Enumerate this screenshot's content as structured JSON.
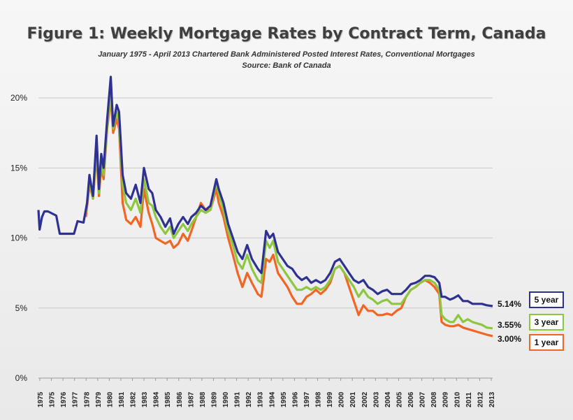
{
  "chart_data": {
    "type": "line",
    "title": "Figure 1: Weekly Mortgage Rates by Contract Term, Canada",
    "subtitle": "January 1975 - April 2013 Chartered Bank Administered Posted Interest Rates, Conventional Mortgages",
    "source": "Source: Bank of Canada",
    "xlabel": "",
    "ylabel": "",
    "xlim": [
      1975,
      2013.3
    ],
    "ylim": [
      0,
      22
    ],
    "y_ticks": [
      0,
      5,
      10,
      15,
      20
    ],
    "y_tick_labels": [
      "0%",
      "5%",
      "10%",
      "15%",
      "20%"
    ],
    "x_tick_labels": [
      "1975",
      "1975",
      "1976",
      "1977",
      "1978",
      "1979",
      "1980",
      "1981",
      "1982",
      "1983",
      "1984",
      "1985",
      "1986",
      "1987",
      "1988",
      "1989",
      "1990",
      "1991",
      "1992",
      "1993",
      "1994",
      "1995",
      "1996",
      "1997",
      "1998",
      "1999",
      "2000",
      "2001",
      "2002",
      "2003",
      "2004",
      "2005",
      "2006",
      "2007",
      "2008",
      "2009",
      "2010",
      "2011",
      "2012",
      "2013"
    ],
    "grid": true,
    "legend_position": "right",
    "colors": {
      "five_year": "#2e3192",
      "three_year": "#8dc63f",
      "one_year": "#f26522"
    },
    "series": [
      {
        "name": "5 year",
        "end_label": "5.14%",
        "x": [
          1975.0,
          1975.1,
          1975.3,
          1975.5,
          1975.8,
          1976.5,
          1976.8,
          1977.3,
          1978.0,
          1978.3,
          1978.8,
          1979.1,
          1979.3,
          1979.6,
          1979.9,
          1980.1,
          1980.3,
          1980.5,
          1980.8,
          1981.1,
          1981.3,
          1981.6,
          1981.8,
          1982.1,
          1982.4,
          1982.8,
          1983.2,
          1983.6,
          1983.9,
          1984.3,
          1984.6,
          1984.9,
          1985.3,
          1985.7,
          1986.1,
          1986.4,
          1986.8,
          1987.2,
          1987.6,
          1987.9,
          1988.3,
          1988.7,
          1989.1,
          1989.5,
          1990.0,
          1990.2,
          1990.6,
          1991.0,
          1991.4,
          1991.8,
          1992.2,
          1992.6,
          1993.0,
          1993.5,
          1993.8,
          1994.2,
          1994.5,
          1994.8,
          1995.2,
          1995.6,
          1996.0,
          1996.4,
          1996.8,
          1997.2,
          1997.6,
          1998.0,
          1998.4,
          1998.8,
          1999.2,
          1999.6,
          2000.0,
          2000.4,
          2000.8,
          2001.2,
          2001.6,
          2002.0,
          2002.4,
          2002.8,
          2003.2,
          2003.6,
          2004.0,
          2004.4,
          2004.8,
          2005.2,
          2005.6,
          2006.0,
          2006.4,
          2006.8,
          2007.2,
          2007.6,
          2008.0,
          2008.4,
          2008.8,
          2009.0,
          2009.3,
          2009.7,
          2010.0,
          2010.4,
          2010.8,
          2011.2,
          2011.6,
          2012.0,
          2012.4,
          2012.8,
          2013.3
        ],
        "values": [
          12.0,
          10.6,
          11.5,
          11.9,
          11.9,
          11.6,
          10.3,
          10.3,
          10.3,
          11.2,
          11.1,
          12.5,
          14.5,
          13.0,
          17.3,
          13.5,
          16.0,
          15.0,
          18.5,
          21.5,
          18.0,
          19.5,
          19.0,
          14.5,
          13.2,
          12.8,
          13.8,
          12.5,
          15.0,
          13.5,
          13.2,
          12.0,
          11.5,
          10.8,
          11.4,
          10.3,
          11.0,
          11.5,
          11.0,
          11.5,
          11.8,
          12.3,
          12.0,
          12.3,
          14.2,
          13.5,
          12.5,
          11.0,
          10.0,
          9.0,
          8.5,
          9.5,
          8.5,
          7.8,
          7.5,
          10.5,
          10.0,
          10.3,
          9.0,
          8.5,
          8.0,
          7.8,
          7.3,
          7.0,
          7.2,
          6.8,
          7.0,
          6.8,
          7.0,
          7.5,
          8.3,
          8.5,
          8.0,
          7.5,
          7.0,
          6.8,
          7.0,
          6.5,
          6.3,
          6.0,
          6.2,
          6.3,
          6.0,
          6.0,
          6.0,
          6.3,
          6.7,
          6.8,
          7.0,
          7.3,
          7.3,
          7.2,
          6.8,
          5.8,
          5.8,
          5.6,
          5.7,
          5.9,
          5.5,
          5.5,
          5.3,
          5.3,
          5.3,
          5.2,
          5.14
        ]
      },
      {
        "name": "3 year",
        "end_label": "3.55%",
        "x": [
          1979.0,
          1979.3,
          1979.6,
          1979.9,
          1980.1,
          1980.3,
          1980.5,
          1980.8,
          1981.1,
          1981.3,
          1981.6,
          1981.8,
          1982.1,
          1982.4,
          1982.8,
          1983.2,
          1983.6,
          1983.9,
          1984.3,
          1984.6,
          1984.9,
          1985.3,
          1985.7,
          1986.1,
          1986.4,
          1986.8,
          1987.2,
          1987.6,
          1987.9,
          1988.3,
          1988.7,
          1989.1,
          1989.5,
          1990.0,
          1990.2,
          1990.6,
          1991.0,
          1991.4,
          1991.8,
          1992.2,
          1992.6,
          1993.0,
          1993.5,
          1993.8,
          1994.2,
          1994.5,
          1994.8,
          1995.2,
          1995.6,
          1996.0,
          1996.4,
          1996.8,
          1997.2,
          1997.6,
          1998.0,
          1998.4,
          1998.8,
          1999.2,
          1999.6,
          2000.0,
          2000.4,
          2000.8,
          2001.2,
          2001.6,
          2002.0,
          2002.4,
          2002.8,
          2003.2,
          2003.6,
          2004.0,
          2004.4,
          2004.8,
          2005.2,
          2005.6,
          2006.0,
          2006.4,
          2006.8,
          2007.2,
          2007.6,
          2008.0,
          2008.4,
          2008.8,
          2009.0,
          2009.3,
          2009.7,
          2010.0,
          2010.4,
          2010.8,
          2011.2,
          2011.6,
          2012.0,
          2012.4,
          2012.8,
          2013.3
        ],
        "values": [
          11.8,
          14.0,
          12.8,
          16.5,
          13.2,
          15.5,
          14.5,
          18.0,
          20.5,
          17.8,
          19.0,
          18.3,
          13.8,
          12.5,
          12.0,
          12.8,
          11.8,
          14.2,
          12.5,
          12.3,
          11.5,
          10.8,
          10.3,
          10.8,
          10.0,
          10.5,
          11.0,
          10.5,
          11.0,
          11.5,
          12.0,
          11.8,
          12.0,
          14.0,
          13.2,
          12.0,
          10.5,
          9.5,
          8.3,
          7.8,
          8.8,
          7.8,
          7.0,
          6.8,
          9.8,
          9.3,
          9.8,
          8.3,
          7.8,
          7.3,
          6.8,
          6.3,
          6.3,
          6.5,
          6.3,
          6.5,
          6.3,
          6.5,
          7.0,
          7.8,
          8.0,
          7.5,
          7.0,
          6.5,
          5.8,
          6.3,
          5.8,
          5.6,
          5.3,
          5.5,
          5.6,
          5.3,
          5.3,
          5.3,
          5.8,
          6.3,
          6.5,
          6.8,
          7.0,
          7.0,
          6.8,
          6.3,
          4.5,
          4.2,
          4.0,
          4.0,
          4.5,
          4.0,
          4.2,
          4.0,
          3.9,
          3.8,
          3.6,
          3.55
        ]
      },
      {
        "name": "1 year",
        "end_label": "3.00%",
        "x": [
          1979.0,
          1979.3,
          1979.6,
          1979.9,
          1980.1,
          1980.3,
          1980.5,
          1980.8,
          1981.1,
          1981.3,
          1981.6,
          1981.8,
          1982.1,
          1982.4,
          1982.8,
          1983.2,
          1983.6,
          1983.9,
          1984.3,
          1984.6,
          1984.9,
          1985.3,
          1985.7,
          1986.1,
          1986.4,
          1986.8,
          1987.2,
          1987.6,
          1987.9,
          1988.3,
          1988.7,
          1989.1,
          1989.5,
          1990.0,
          1990.2,
          1990.6,
          1991.0,
          1991.4,
          1991.8,
          1992.2,
          1992.6,
          1993.0,
          1993.5,
          1993.8,
          1994.2,
          1994.5,
          1994.8,
          1995.2,
          1995.6,
          1996.0,
          1996.4,
          1996.8,
          1997.2,
          1997.6,
          1998.0,
          1998.4,
          1998.8,
          1999.2,
          1999.6,
          2000.0,
          2000.4,
          2000.8,
          2001.2,
          2001.6,
          2002.0,
          2002.4,
          2002.8,
          2003.2,
          2003.6,
          2004.0,
          2004.4,
          2004.8,
          2005.2,
          2005.6,
          2006.0,
          2006.4,
          2006.8,
          2007.2,
          2007.6,
          2008.0,
          2008.4,
          2008.8,
          2009.0,
          2009.3,
          2009.7,
          2010.0,
          2010.4,
          2010.8,
          2011.2,
          2011.6,
          2012.0,
          2012.4,
          2012.8,
          2013.3
        ],
        "values": [
          11.5,
          13.8,
          12.8,
          16.0,
          13.0,
          15.0,
          14.2,
          17.8,
          20.0,
          17.5,
          18.5,
          17.8,
          12.5,
          11.3,
          11.0,
          11.5,
          10.8,
          13.5,
          11.8,
          11.0,
          10.0,
          9.8,
          9.6,
          9.8,
          9.3,
          9.6,
          10.3,
          9.8,
          10.5,
          11.5,
          12.5,
          12.0,
          12.0,
          13.5,
          12.5,
          11.5,
          10.0,
          8.8,
          7.5,
          6.5,
          7.5,
          6.8,
          6.0,
          5.8,
          8.5,
          8.3,
          8.8,
          7.5,
          7.0,
          6.5,
          5.8,
          5.3,
          5.3,
          5.8,
          6.0,
          6.3,
          6.0,
          6.3,
          6.8,
          7.8,
          8.0,
          7.5,
          6.5,
          5.5,
          4.5,
          5.2,
          4.8,
          4.8,
          4.5,
          4.5,
          4.6,
          4.5,
          4.8,
          5.0,
          5.8,
          6.3,
          6.5,
          6.8,
          7.0,
          6.8,
          6.5,
          6.0,
          4.0,
          3.8,
          3.7,
          3.7,
          3.8,
          3.6,
          3.5,
          3.4,
          3.3,
          3.2,
          3.1,
          3.0
        ]
      }
    ]
  }
}
